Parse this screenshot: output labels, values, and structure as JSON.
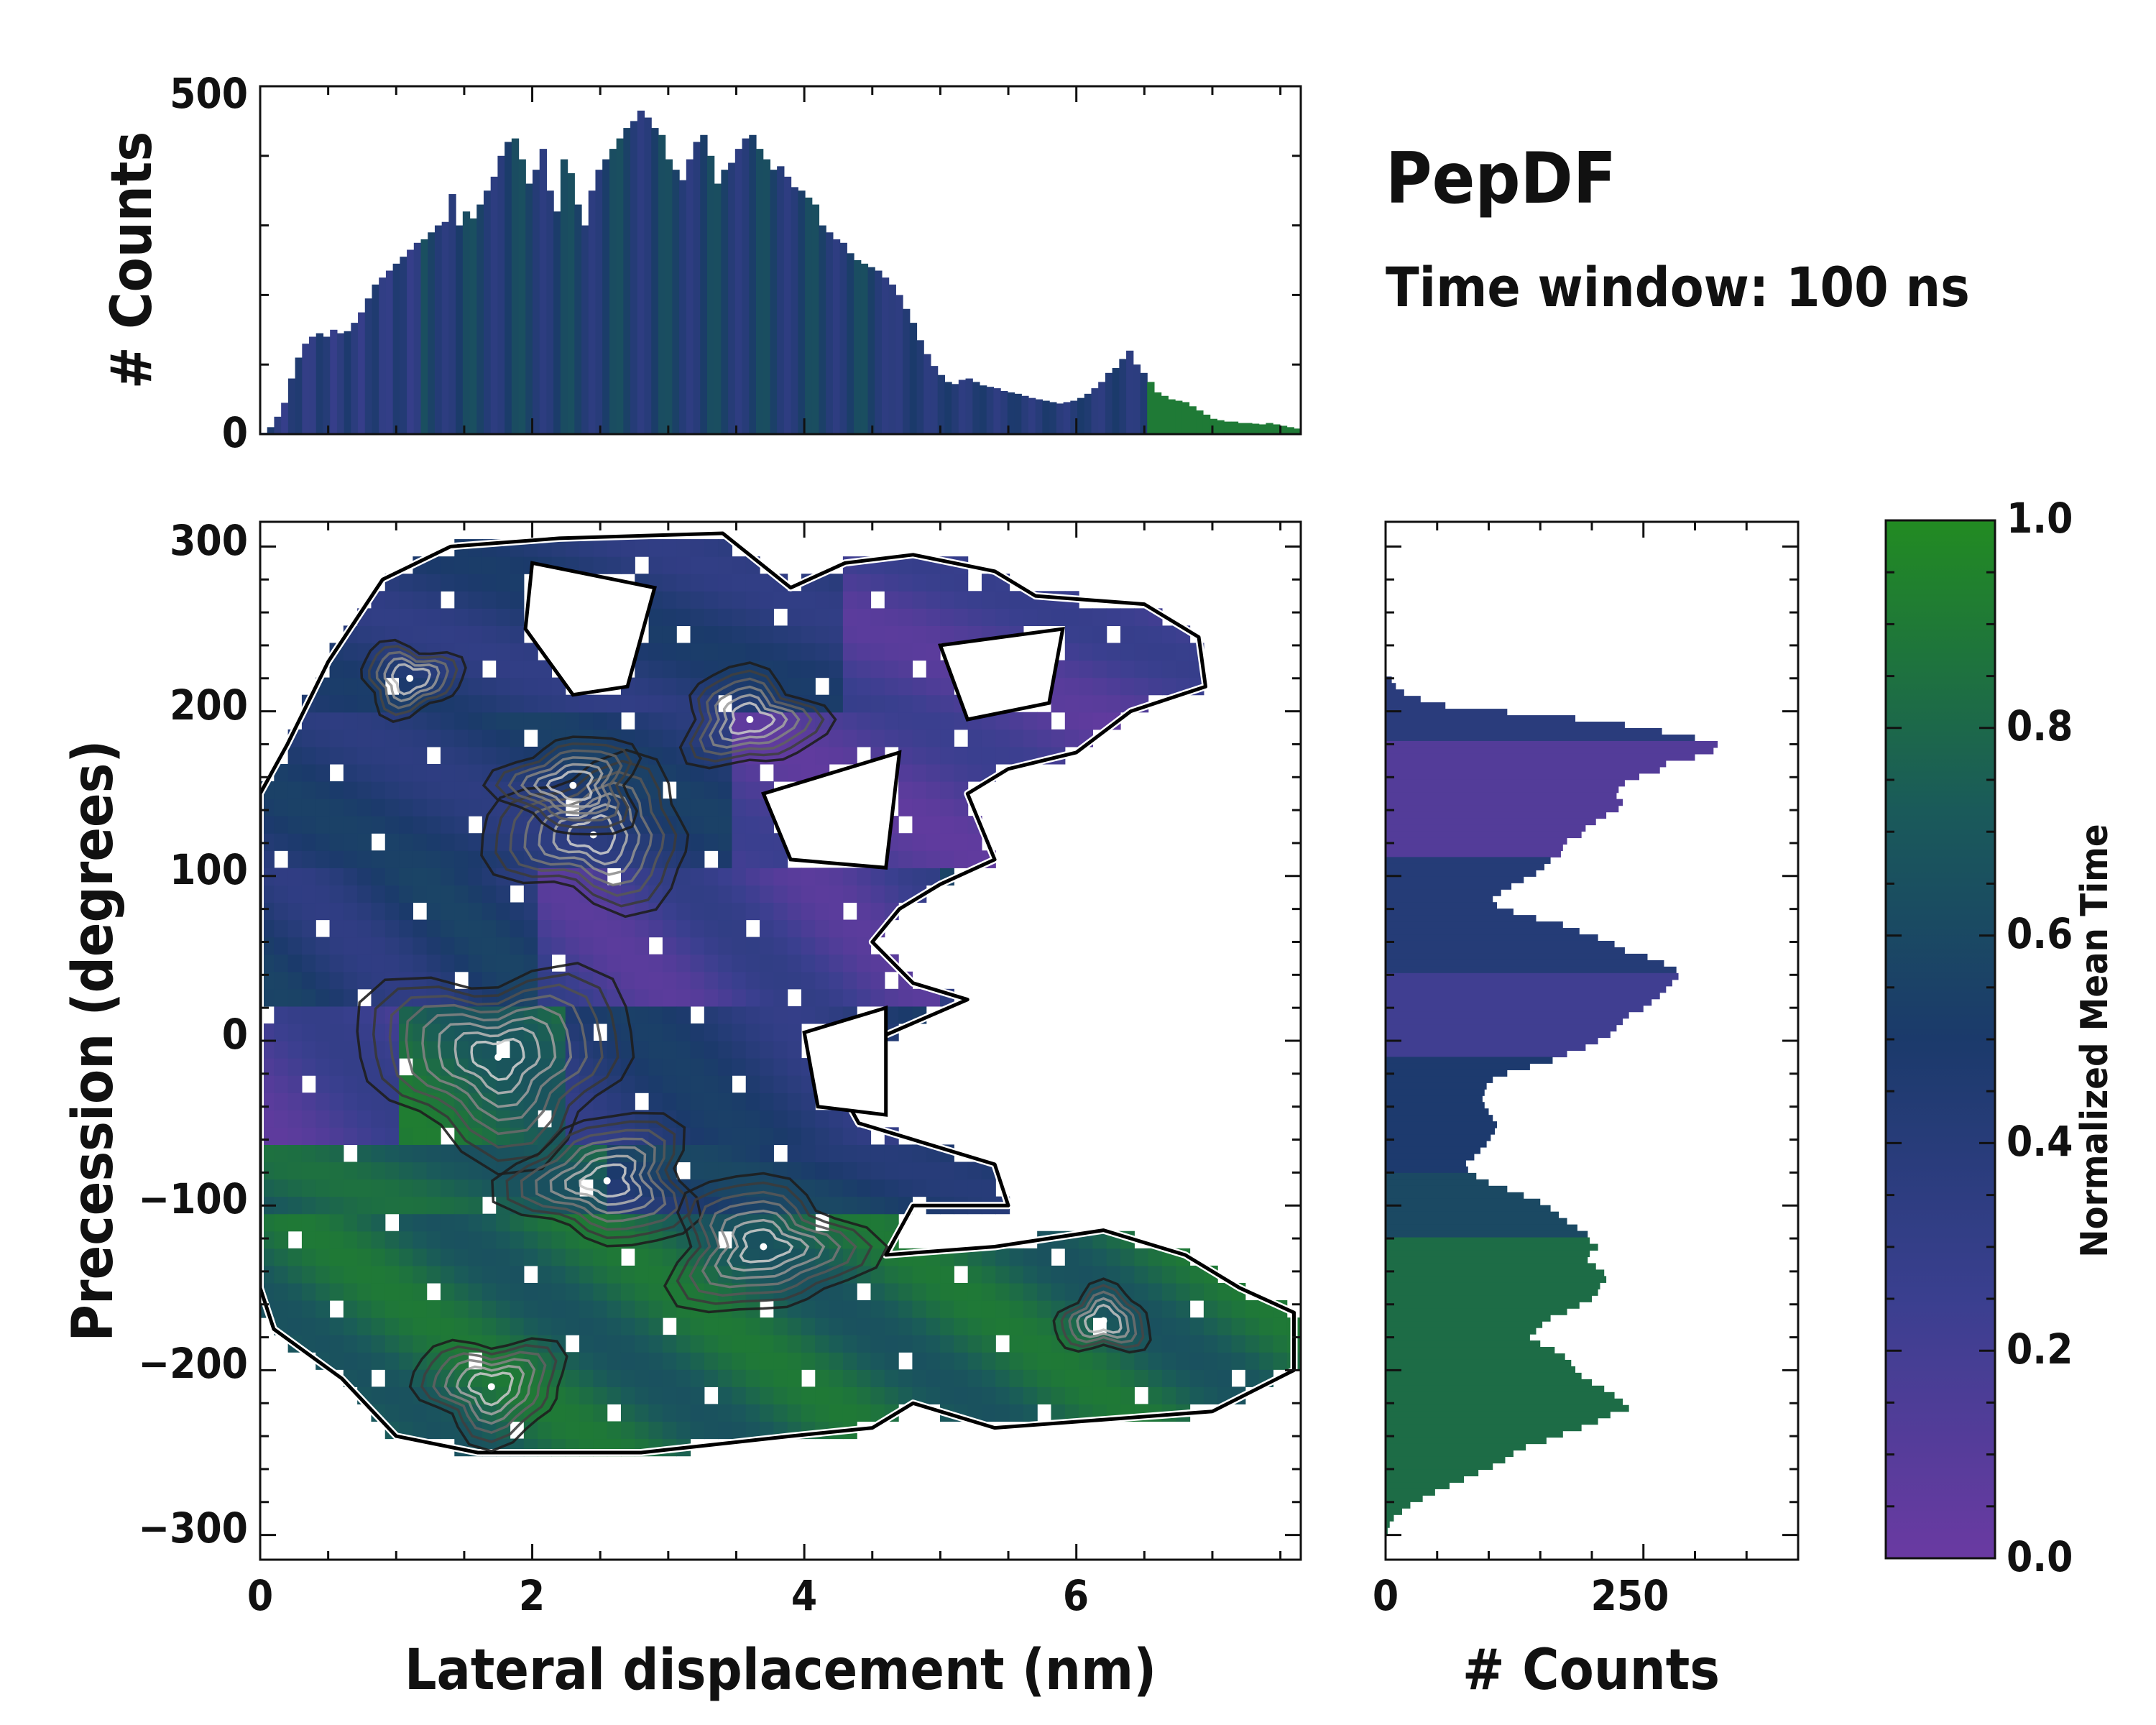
{
  "colors": {
    "purple": "#6a3aa2",
    "indigo": "#3a3f8f",
    "navy": "#1b3a6b",
    "teal": "#1a5a5a",
    "green": "#228b22"
  },
  "chart_data": {
    "type": "heatmap",
    "title": "PepDF",
    "subtitle": "Time window: 100 ns",
    "main": {
      "xlabel": "Lateral displacement (nm)",
      "ylabel": "Precession (degrees)",
      "xlim": [
        0,
        7.65
      ],
      "ylim": [
        -315,
        315
      ],
      "xticks": [
        "0",
        "2",
        "4",
        "6"
      ],
      "yticks": [
        "300",
        "200",
        "100",
        "0",
        "−100",
        "−200",
        "−300"
      ],
      "density_peaks": [
        {
          "x": 1.75,
          "y": -10,
          "strength": 1.0
        },
        {
          "x": 2.45,
          "y": 125,
          "strength": 0.8
        },
        {
          "x": 2.3,
          "y": 155,
          "strength": 0.55
        },
        {
          "x": 2.55,
          "y": -85,
          "strength": 0.7
        },
        {
          "x": 3.7,
          "y": -125,
          "strength": 0.75
        },
        {
          "x": 1.7,
          "y": -210,
          "strength": 0.6
        },
        {
          "x": 3.6,
          "y": 195,
          "strength": 0.55
        },
        {
          "x": 1.1,
          "y": 220,
          "strength": 0.4
        },
        {
          "x": 6.2,
          "y": -170,
          "strength": 0.35
        }
      ]
    },
    "top_histogram": {
      "ylabel": "# Counts",
      "ylim": [
        0,
        500
      ],
      "yticks": [
        "0",
        "500"
      ],
      "x_range": [
        0,
        7.65
      ],
      "values": [
        2,
        10,
        25,
        45,
        80,
        110,
        130,
        140,
        145,
        140,
        150,
        145,
        148,
        160,
        175,
        195,
        215,
        225,
        235,
        245,
        255,
        265,
        275,
        280,
        290,
        300,
        305,
        345,
        300,
        320,
        310,
        330,
        350,
        370,
        400,
        420,
        425,
        395,
        360,
        380,
        410,
        350,
        320,
        395,
        375,
        330,
        300,
        350,
        380,
        395,
        410,
        425,
        440,
        450,
        465,
        455,
        440,
        430,
        395,
        380,
        365,
        395,
        420,
        430,
        400,
        360,
        380,
        390,
        410,
        425,
        430,
        410,
        395,
        380,
        385,
        370,
        355,
        350,
        340,
        330,
        300,
        290,
        280,
        275,
        260,
        250,
        245,
        240,
        235,
        225,
        215,
        200,
        180,
        160,
        135,
        115,
        98,
        85,
        75,
        72,
        78,
        80,
        75,
        70,
        68,
        66,
        62,
        60,
        58,
        55,
        52,
        50,
        48,
        46,
        44,
        46,
        48,
        52,
        58,
        66,
        75,
        88,
        95,
        108,
        120,
        100,
        88,
        75,
        60,
        55,
        50,
        48,
        46,
        40,
        34,
        28,
        22,
        20,
        18,
        18,
        16,
        16,
        15,
        14,
        16,
        14,
        12,
        10,
        8
      ]
    },
    "right_histogram": {
      "xlabel": "# Counts",
      "xlim": [
        0,
        400
      ],
      "xticks": [
        "0",
        "250"
      ],
      "y_range": [
        -315,
        315
      ],
      "values": [
        0,
        0,
        0,
        0,
        0,
        0,
        0,
        0,
        0,
        0,
        0,
        0,
        0,
        0,
        0,
        0,
        0,
        0,
        0,
        0,
        0,
        0,
        0,
        0,
        6,
        10,
        18,
        34,
        58,
        118,
        184,
        232,
        268,
        300,
        322,
        318,
        300,
        272,
        266,
        246,
        232,
        226,
        224,
        230,
        226,
        214,
        204,
        194,
        190,
        176,
        172,
        170,
        160,
        154,
        146,
        134,
        122,
        112,
        104,
        108,
        124,
        146,
        172,
        188,
        206,
        222,
        232,
        254,
        270,
        282,
        284,
        278,
        272,
        266,
        258,
        250,
        236,
        230,
        224,
        218,
        206,
        194,
        176,
        162,
        140,
        118,
        104,
        98,
        96,
        94,
        96,
        100,
        104,
        108,
        106,
        102,
        98,
        92,
        86,
        78,
        80,
        88,
        100,
        118,
        134,
        150,
        160,
        168,
        176,
        186,
        196,
        198,
        206,
        198,
        196,
        204,
        212,
        214,
        208,
        206,
        200,
        188,
        176,
        160,
        152,
        146,
        140,
        150,
        164,
        174,
        180,
        184,
        190,
        200,
        212,
        222,
        230,
        236,
        218,
        206,
        190,
        172,
        156,
        136,
        124,
        116,
        104,
        90,
        76,
        62,
        48,
        36,
        24,
        16,
        8,
        4,
        2,
        0,
        0,
        0,
        0
      ]
    },
    "colorbar": {
      "label": "Normalized Mean Time",
      "range": [
        0,
        1
      ],
      "ticks": [
        "0.0",
        "0.2",
        "0.4",
        "0.6",
        "0.8",
        "1.0"
      ]
    }
  }
}
